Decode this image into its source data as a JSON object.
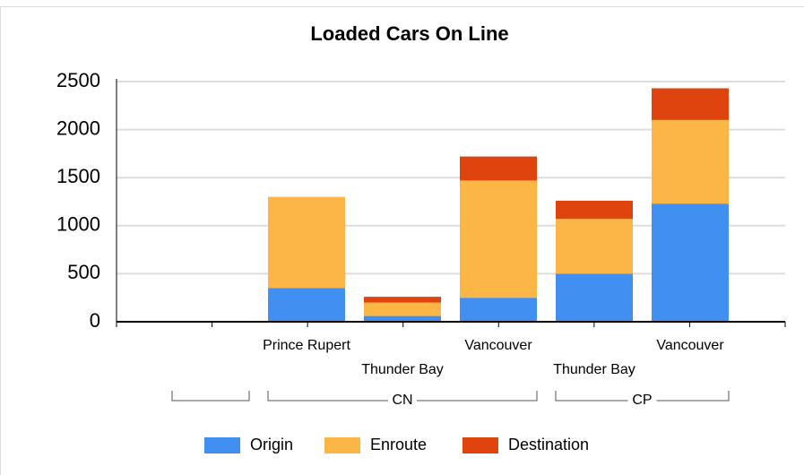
{
  "chart_data": {
    "type": "stacked_bar",
    "title": "Loaded Cars On Line",
    "categories": [
      null,
      "Prince Rupert",
      "Thunder Bay",
      "Vancouver",
      "Thunder Bay",
      "Vancouver"
    ],
    "groups": [
      {
        "label": null,
        "count": 1
      },
      {
        "label": "CN",
        "count": 3
      },
      {
        "label": "CP",
        "count": 2
      }
    ],
    "series": [
      {
        "name": "Origin",
        "color": "#4190f1",
        "values": [
          null,
          350,
          60,
          250,
          500,
          1230
        ]
      },
      {
        "name": "Enroute",
        "color": "#fbb645",
        "values": [
          null,
          950,
          140,
          1220,
          570,
          870
        ]
      },
      {
        "name": "Destination",
        "color": "#e0440e",
        "values": [
          null,
          null,
          60,
          250,
          190,
          330
        ]
      }
    ],
    "ylim": [
      0,
      2500
    ],
    "yticks": [
      0,
      500,
      1000,
      1500,
      2000,
      2500
    ],
    "grid": true,
    "legend": "bottom"
  }
}
